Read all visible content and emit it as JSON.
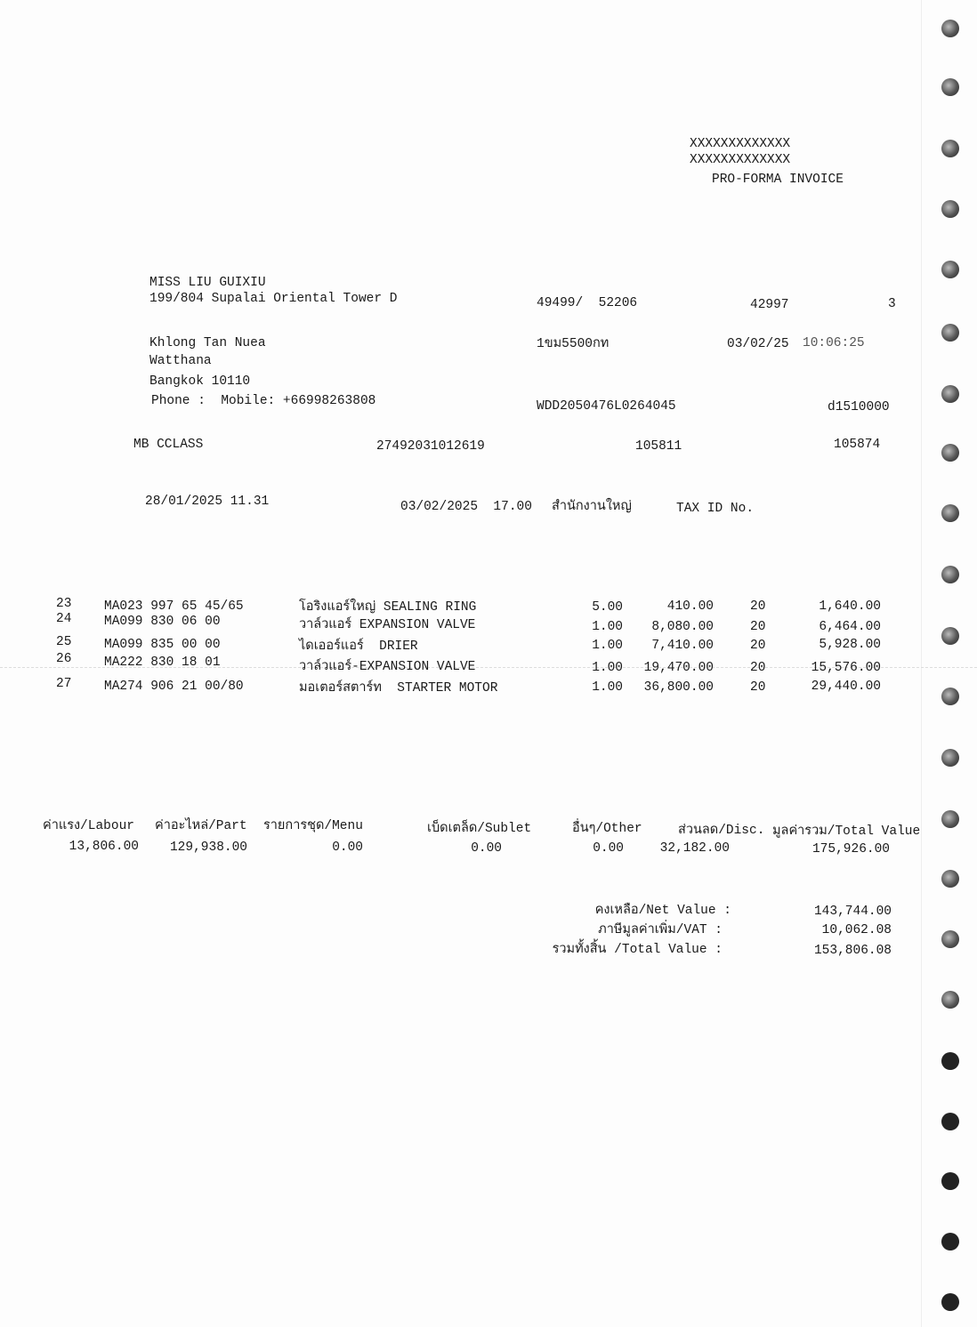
{
  "header": {
    "company_line1": "XXXXXXXXXXXXX",
    "company_line2": "XXXXXXXXXXXXX",
    "doc_title": "PRO-FORMA INVOICE"
  },
  "customer": {
    "name": "MISS LIU GUIXIU",
    "address1": "199/804 Supalai Oriental Tower D",
    "address2": "Khlong Tan Nuea",
    "address3": "Watthana",
    "address4": "Bangkok 10110",
    "phone": "Phone :  Mobile: +66998263808"
  },
  "info": {
    "ref1": "49499/  52206",
    "ref2": "42997",
    "ref3": "3",
    "plate": "1ขม5500กท",
    "date": "03/02/25",
    "time": "10:06:25",
    "vin": "WDD2050476L0264045",
    "code": "d1510000",
    "model": "MB CCLASS",
    "number1": "27492031012619",
    "number2": "105811",
    "number3": "105874",
    "open_date": "28/01/2025 11.31",
    "close_date": "03/02/2025  17.00",
    "branch": "สำนักงานใหญ่",
    "tax_id_label": "TAX ID No."
  },
  "items": [
    {
      "no": "23",
      "part": "MA023 997 65 45/65",
      "desc": "โอริงแอร์ใหญ่ SEALING RING",
      "qty": "5.00",
      "price": "410.00",
      "disc": "20",
      "amount": "1,640.00"
    },
    {
      "no": "24",
      "part": "MA099 830 06 00",
      "desc": "วาล์วแอร์ EXPANSION VALVE",
      "qty": "1.00",
      "price": "8,080.00",
      "disc": "20",
      "amount": "6,464.00"
    },
    {
      "no": "25",
      "part": "MA099 835 00 00",
      "desc": "ไดเออร์แอร์  DRIER",
      "qty": "1.00",
      "price": "7,410.00",
      "disc": "20",
      "amount": "5,928.00"
    },
    {
      "no": "26",
      "part": "MA222 830 18 01",
      "desc": "วาล์วแอร์-EXPANSION VALVE",
      "qty": "1.00",
      "price": "19,470.00",
      "disc": "20",
      "amount": "15,576.00"
    },
    {
      "no": "27",
      "part": "MA274 906 21 00/80",
      "desc": "มอเตอร์สตาร์ท  STARTER MOTOR",
      "qty": "1.00",
      "price": "36,800.00",
      "disc": "20",
      "amount": "29,440.00"
    }
  ],
  "summary": {
    "labels": [
      "ค่าแรง/Labour",
      "ค่าอะไหล่/Part",
      "รายการชุด/Menu",
      "เบ็ดเตล็ด/Sublet",
      "อื่นๆ/Other",
      "ส่วนลด/Disc.",
      "มูลค่ารวม/Total Value"
    ],
    "values": [
      "13,806.00",
      "129,938.00",
      "0.00",
      "0.00",
      "0.00",
      "32,182.00",
      "175,926.00"
    ]
  },
  "totals": {
    "net_label": "คงเหลือ/Net Value :",
    "net_value": "143,744.00",
    "vat_label": "ภาษีมูลค่าเพิ่ม/VAT :",
    "vat_value": "10,062.08",
    "total_label": "รวมทั้งสิ้น /Total Value :",
    "total_value": "153,806.08"
  }
}
